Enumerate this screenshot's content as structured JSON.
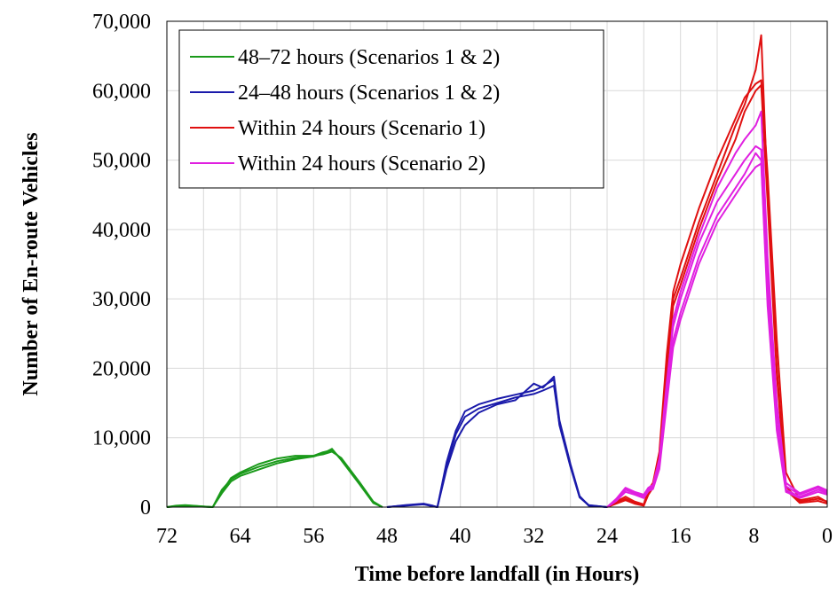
{
  "chart_data": {
    "type": "line",
    "title": "",
    "xlabel": "Time before landfall (in Hours)",
    "ylabel": "Number of En-route Vehicles",
    "xlim": [
      72,
      0
    ],
    "ylim": [
      0,
      70000
    ],
    "x_reversed": true,
    "x_ticks": [
      "72",
      "64",
      "56",
      "48",
      "40",
      "32",
      "24",
      "16",
      "8",
      "0"
    ],
    "y_ticks": [
      "0",
      "10,000",
      "20,000",
      "30,000",
      "40,000",
      "50,000",
      "60,000",
      "70,000"
    ],
    "grid": true,
    "legend_position": "top-left",
    "legend": [
      {
        "label": "48–72 hours (Scenarios 1 & 2)",
        "color": "#1a9a1a"
      },
      {
        "label": "24–48 hours (Scenarios 1 & 2)",
        "color": "#1a1aaa"
      },
      {
        "label": "Within 24 hours (Scenario 1)",
        "color": "#e01010"
      },
      {
        "label": "Within 24 hours (Scenario 2)",
        "color": "#e020e0"
      }
    ],
    "series": [
      {
        "group": "48–72 hours (Scenarios 1 & 2)",
        "color": "#1a9a1a",
        "points": [
          [
            72,
            0
          ],
          [
            71,
            200
          ],
          [
            70,
            300
          ],
          [
            68,
            100
          ],
          [
            67,
            0
          ],
          [
            66,
            2500
          ],
          [
            65,
            4000
          ],
          [
            64,
            4800
          ],
          [
            62,
            5800
          ],
          [
            60,
            6600
          ],
          [
            58,
            7100
          ],
          [
            56,
            7400
          ],
          [
            55,
            7900
          ],
          [
            54,
            8200
          ],
          [
            53,
            7000
          ],
          [
            51,
            3500
          ],
          [
            49.5,
            700
          ],
          [
            48.5,
            0
          ]
        ]
      },
      {
        "group": "48–72 hours (Scenarios 1 & 2)",
        "color": "#1a9a1a",
        "points": [
          [
            72,
            0
          ],
          [
            71,
            100
          ],
          [
            70,
            200
          ],
          [
            68,
            50
          ],
          [
            67,
            0
          ],
          [
            66,
            2000
          ],
          [
            65,
            3700
          ],
          [
            64,
            4500
          ],
          [
            62,
            5400
          ],
          [
            60,
            6300
          ],
          [
            58,
            6900
          ],
          [
            56,
            7300
          ],
          [
            55,
            7700
          ],
          [
            54,
            8400
          ],
          [
            53,
            6800
          ],
          [
            51,
            3300
          ],
          [
            49.5,
            600
          ],
          [
            48.5,
            0
          ]
        ]
      },
      {
        "group": "48–72 hours (Scenarios 1 & 2)",
        "color": "#1a9a1a",
        "points": [
          [
            72,
            0
          ],
          [
            71,
            150
          ],
          [
            70,
            250
          ],
          [
            68,
            80
          ],
          [
            67,
            0
          ],
          [
            66,
            2200
          ],
          [
            65,
            4200
          ],
          [
            64,
            5000
          ],
          [
            62,
            6200
          ],
          [
            60,
            7000
          ],
          [
            58,
            7400
          ],
          [
            56,
            7400
          ],
          [
            55,
            7600
          ],
          [
            54,
            8000
          ],
          [
            53,
            7100
          ],
          [
            51,
            3600
          ],
          [
            49.5,
            800
          ],
          [
            48.5,
            0
          ]
        ]
      },
      {
        "group": "24–48 hours (Scenarios 1 & 2)",
        "color": "#1a1aaa",
        "points": [
          [
            48,
            0
          ],
          [
            46,
            300
          ],
          [
            44,
            500
          ],
          [
            43,
            200
          ],
          [
            42.5,
            0
          ],
          [
            41.5,
            6000
          ],
          [
            40.5,
            10500
          ],
          [
            39.5,
            13000
          ],
          [
            38,
            14200
          ],
          [
            36,
            15000
          ],
          [
            34,
            15800
          ],
          [
            32,
            16300
          ],
          [
            31,
            16800
          ],
          [
            29.8,
            17500
          ],
          [
            29.2,
            12000
          ],
          [
            28,
            6000
          ],
          [
            27,
            1500
          ],
          [
            26,
            300
          ],
          [
            24,
            0
          ]
        ]
      },
      {
        "group": "24–48 hours (Scenarios 1 & 2)",
        "color": "#1a1aaa",
        "points": [
          [
            48,
            0
          ],
          [
            46,
            200
          ],
          [
            44,
            400
          ],
          [
            43,
            100
          ],
          [
            42.5,
            0
          ],
          [
            41.5,
            5500
          ],
          [
            40.5,
            9500
          ],
          [
            39.5,
            11800
          ],
          [
            38,
            13600
          ],
          [
            36,
            14800
          ],
          [
            34,
            15400
          ],
          [
            32,
            17800
          ],
          [
            31,
            17200
          ],
          [
            29.8,
            18800
          ],
          [
            29.2,
            12500
          ],
          [
            28,
            6200
          ],
          [
            27,
            1600
          ],
          [
            26,
            200
          ],
          [
            24,
            0
          ]
        ]
      },
      {
        "group": "24–48 hours (Scenarios 1 & 2)",
        "color": "#1a1aaa",
        "points": [
          [
            48,
            0
          ],
          [
            46,
            250
          ],
          [
            44,
            450
          ],
          [
            43,
            150
          ],
          [
            42.5,
            0
          ],
          [
            41.5,
            6500
          ],
          [
            40.5,
            11000
          ],
          [
            39.5,
            13800
          ],
          [
            38,
            14800
          ],
          [
            36,
            15600
          ],
          [
            34,
            16200
          ],
          [
            32,
            16800
          ],
          [
            31,
            17400
          ],
          [
            29.8,
            18400
          ],
          [
            29.2,
            11800
          ],
          [
            28,
            5800
          ],
          [
            27,
            1400
          ],
          [
            26,
            250
          ],
          [
            24,
            0
          ]
        ]
      },
      {
        "group": "Within 24 hours (Scenario 1)",
        "color": "#e01010",
        "points": [
          [
            24,
            0
          ],
          [
            23,
            600
          ],
          [
            22,
            1200
          ],
          [
            21,
            600
          ],
          [
            20,
            300
          ],
          [
            19.5,
            2000
          ],
          [
            19,
            3000
          ],
          [
            18.3,
            7000
          ],
          [
            17.5,
            20000
          ],
          [
            16.8,
            30000
          ],
          [
            16,
            33000
          ],
          [
            14,
            41000
          ],
          [
            12,
            48000
          ],
          [
            10,
            55000
          ],
          [
            9,
            58000
          ],
          [
            7.8,
            63000
          ],
          [
            7.2,
            68000
          ],
          [
            6.5,
            45000
          ],
          [
            5.5,
            20000
          ],
          [
            4.5,
            3000
          ],
          [
            3,
            800
          ],
          [
            1,
            1200
          ],
          [
            0,
            800
          ]
        ]
      },
      {
        "group": "Within 24 hours (Scenario 1)",
        "color": "#e01010",
        "points": [
          [
            24,
            0
          ],
          [
            23,
            800
          ],
          [
            22,
            1500
          ],
          [
            21,
            800
          ],
          [
            20,
            400
          ],
          [
            19.5,
            2500
          ],
          [
            19,
            3500
          ],
          [
            18.3,
            8000
          ],
          [
            17.5,
            22000
          ],
          [
            16.8,
            31000
          ],
          [
            16,
            35000
          ],
          [
            14,
            43000
          ],
          [
            12,
            50000
          ],
          [
            10,
            56000
          ],
          [
            9,
            59000
          ],
          [
            7.8,
            61000
          ],
          [
            7.2,
            61500
          ],
          [
            6.5,
            48000
          ],
          [
            5.5,
            24000
          ],
          [
            4.5,
            5000
          ],
          [
            3,
            1000
          ],
          [
            1,
            1500
          ],
          [
            0,
            700
          ]
        ]
      },
      {
        "group": "Within 24 hours (Scenario 1)",
        "color": "#e01010",
        "points": [
          [
            24,
            0
          ],
          [
            23,
            500
          ],
          [
            22,
            1000
          ],
          [
            21,
            500
          ],
          [
            20,
            200
          ],
          [
            19.5,
            1800
          ],
          [
            19,
            2800
          ],
          [
            18.3,
            6500
          ],
          [
            17.5,
            19000
          ],
          [
            16.8,
            29000
          ],
          [
            16,
            32000
          ],
          [
            14,
            40000
          ],
          [
            12,
            47000
          ],
          [
            10,
            53000
          ],
          [
            9,
            57000
          ],
          [
            7.8,
            60000
          ],
          [
            7.2,
            60800
          ],
          [
            6.5,
            44000
          ],
          [
            5.5,
            19000
          ],
          [
            4.5,
            2500
          ],
          [
            3,
            600
          ],
          [
            1,
            900
          ],
          [
            0,
            500
          ]
        ]
      },
      {
        "group": "Within 24 hours (Scenario 2)",
        "color": "#e020e0",
        "points": [
          [
            24,
            0
          ],
          [
            23,
            1000
          ],
          [
            22,
            2500
          ],
          [
            21,
            2000
          ],
          [
            20,
            1500
          ],
          [
            19.5,
            2500
          ],
          [
            19,
            2800
          ],
          [
            18.3,
            6000
          ],
          [
            17.5,
            16000
          ],
          [
            16.8,
            24000
          ],
          [
            16,
            28000
          ],
          [
            14,
            36000
          ],
          [
            12,
            42000
          ],
          [
            10,
            46000
          ],
          [
            9,
            48000
          ],
          [
            7.8,
            51000
          ],
          [
            7.2,
            50000
          ],
          [
            6.5,
            30000
          ],
          [
            5.5,
            12000
          ],
          [
            4.5,
            2500
          ],
          [
            3,
            1500
          ],
          [
            1,
            2500
          ],
          [
            0,
            2000
          ]
        ]
      },
      {
        "group": "Within 24 hours (Scenario 2)",
        "color": "#e020e0",
        "points": [
          [
            24,
            0
          ],
          [
            23,
            1200
          ],
          [
            22,
            2800
          ],
          [
            21,
            2200
          ],
          [
            20,
            1800
          ],
          [
            19.5,
            2800
          ],
          [
            19,
            3200
          ],
          [
            18.3,
            7000
          ],
          [
            17.5,
            18000
          ],
          [
            16.8,
            26000
          ],
          [
            16,
            30000
          ],
          [
            14,
            38000
          ],
          [
            12,
            44000
          ],
          [
            10,
            48000
          ],
          [
            9,
            50000
          ],
          [
            7.8,
            52000
          ],
          [
            7.2,
            51500
          ],
          [
            6.5,
            33000
          ],
          [
            5.5,
            14000
          ],
          [
            4.5,
            3000
          ],
          [
            3,
            1800
          ],
          [
            1,
            2800
          ],
          [
            0,
            2200
          ]
        ]
      },
      {
        "group": "Within 24 hours (Scenario 2)",
        "color": "#e020e0",
        "points": [
          [
            24,
            0
          ],
          [
            23,
            900
          ],
          [
            22,
            2200
          ],
          [
            21,
            1800
          ],
          [
            20,
            1300
          ],
          [
            19.5,
            2300
          ],
          [
            19,
            2600
          ],
          [
            18.3,
            5500
          ],
          [
            17.5,
            15000
          ],
          [
            16.8,
            23000
          ],
          [
            16,
            27000
          ],
          [
            14,
            35000
          ],
          [
            12,
            41000
          ],
          [
            10,
            45000
          ],
          [
            9,
            47000
          ],
          [
            7.8,
            49000
          ],
          [
            7.2,
            49500
          ],
          [
            6.5,
            29000
          ],
          [
            5.5,
            11000
          ],
          [
            4.5,
            2200
          ],
          [
            3,
            1300
          ],
          [
            1,
            2200
          ],
          [
            0,
            1800
          ]
        ]
      },
      {
        "group": "Within 24 hours (Scenario 2)",
        "color": "#e020e0",
        "points": [
          [
            24,
            0
          ],
          [
            23,
            1100
          ],
          [
            22,
            2600
          ],
          [
            21,
            2100
          ],
          [
            20,
            1600
          ],
          [
            19.5,
            2600
          ],
          [
            19,
            3000
          ],
          [
            18.3,
            6500
          ],
          [
            17.5,
            17000
          ],
          [
            16.8,
            27000
          ],
          [
            16,
            31000
          ],
          [
            14,
            39000
          ],
          [
            12,
            46000
          ],
          [
            10,
            51000
          ],
          [
            9,
            53000
          ],
          [
            7.8,
            55000
          ],
          [
            7.2,
            57000
          ],
          [
            6.5,
            36000
          ],
          [
            5.5,
            15000
          ],
          [
            4.5,
            3500
          ],
          [
            3,
            2000
          ],
          [
            1,
            3000
          ],
          [
            0,
            2400
          ]
        ]
      }
    ]
  }
}
